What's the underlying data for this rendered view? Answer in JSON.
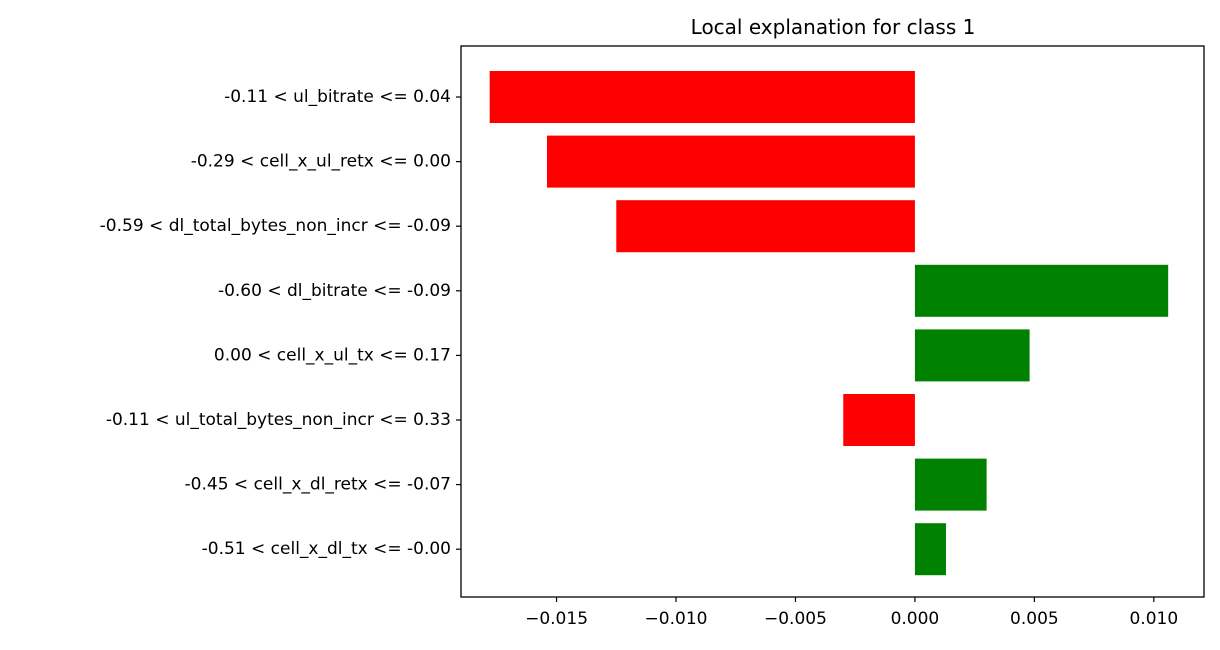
{
  "chart_data": {
    "type": "bar",
    "orientation": "horizontal",
    "title": "Local explanation for class 1",
    "xlabel": "",
    "ylabel": "",
    "xlim": [
      -0.019,
      0.0121
    ],
    "grid": false,
    "categories": [
      "-0.11 < ul_bitrate <= 0.04",
      "-0.29 < cell_x_ul_retx <= 0.00",
      "-0.59 < dl_total_bytes_non_incr <= -0.09",
      "-0.60 < dl_bitrate <= -0.09",
      "0.00 < cell_x_ul_tx <= 0.17",
      "-0.11 < ul_total_bytes_non_incr <= 0.33",
      "-0.45 < cell_x_dl_retx <= -0.07",
      "-0.51 < cell_x_dl_tx <= -0.00"
    ],
    "values": [
      -0.0178,
      -0.0154,
      -0.0125,
      0.0106,
      0.0048,
      -0.003,
      0.003,
      0.0013
    ],
    "xticks": [
      -0.015,
      -0.01,
      -0.005,
      0.0,
      0.005,
      0.01
    ],
    "xtick_labels": [
      "−0.015",
      "−0.010",
      "−0.005",
      "0.000",
      "0.005",
      "0.010"
    ],
    "colors": {
      "positive": "#008000",
      "negative": "#ff0000",
      "axis": "#000000"
    }
  }
}
